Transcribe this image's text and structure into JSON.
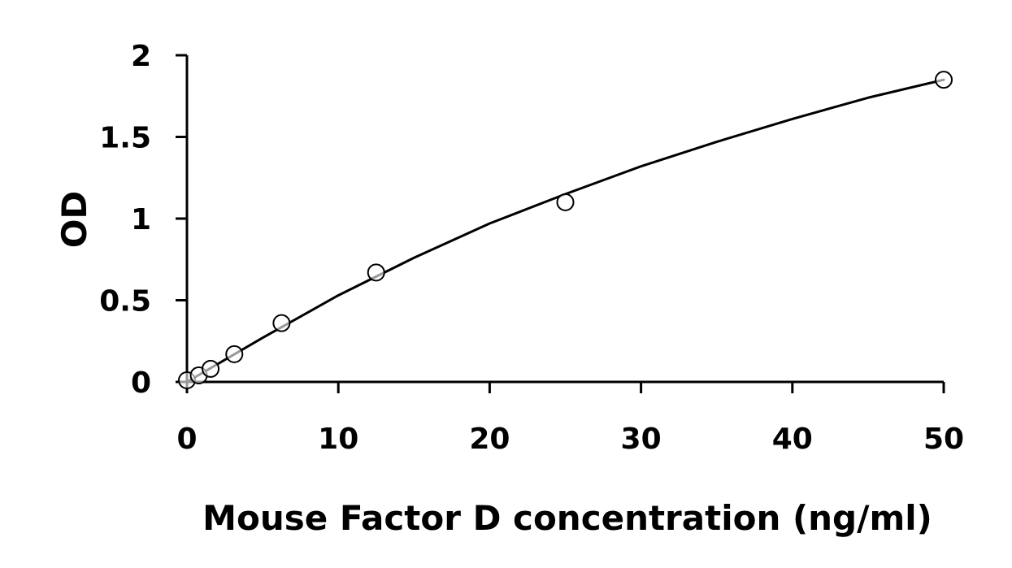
{
  "chart_data": {
    "type": "scatter",
    "title": "",
    "xlabel": "Mouse Factor D concentration (ng/ml)",
    "ylabel": "OD",
    "xlim": [
      0,
      50
    ],
    "ylim": [
      0,
      2
    ],
    "x_ticks": [
      0,
      10,
      20,
      30,
      40,
      50
    ],
    "y_ticks": [
      0,
      0.5,
      1,
      1.5,
      2
    ],
    "x_tick_labels": [
      "0",
      "10",
      "20",
      "30",
      "40",
      "50"
    ],
    "y_tick_labels": [
      "0",
      "0.5",
      "1",
      "1.5",
      "2"
    ],
    "grid": false,
    "legend": "none",
    "colors": {
      "line": "#000000",
      "marker_stroke": "#000000",
      "marker_fill": "#ffffff",
      "axis": "#000000"
    },
    "series": [
      {
        "kind": "points",
        "marker": "open-circle",
        "x": [
          0,
          0.78,
          1.56,
          3.13,
          6.25,
          12.5,
          25,
          50
        ],
        "y": [
          0.01,
          0.04,
          0.08,
          0.17,
          0.36,
          0.67,
          1.1,
          1.85
        ]
      },
      {
        "kind": "fit-curve",
        "x": [
          0,
          5,
          10,
          15,
          20,
          25,
          30,
          35,
          40,
          45,
          50
        ],
        "y": [
          0.0,
          0.27,
          0.53,
          0.76,
          0.97,
          1.15,
          1.32,
          1.47,
          1.61,
          1.74,
          1.85
        ]
      }
    ]
  }
}
